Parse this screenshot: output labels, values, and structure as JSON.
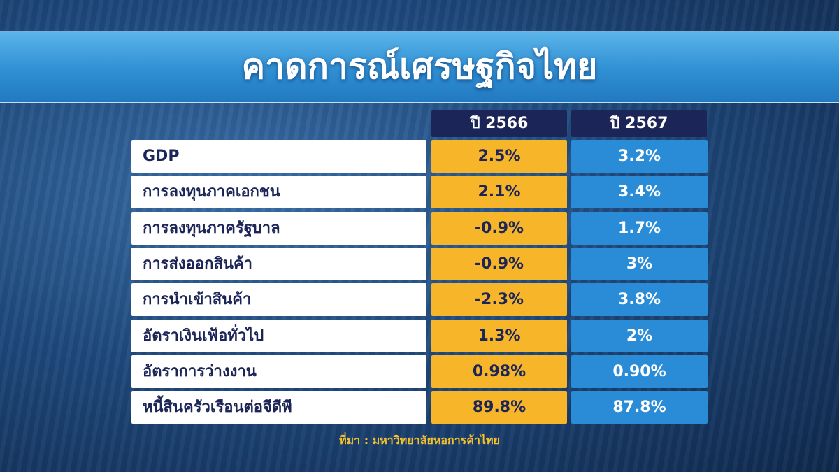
{
  "header": {
    "title": "คาดการณ์เศรษฐกิจไทย"
  },
  "table": {
    "columns": [
      "ปี 2566",
      "ปี 2567"
    ],
    "rows": [
      [
        "GDP",
        "2.5%",
        "3.2%"
      ],
      [
        "การลงทุนภาคเอกชน",
        "2.1%",
        "3.4%"
      ],
      [
        "การลงทุนภาครัฐบาล",
        "-0.9%",
        "1.7%"
      ],
      [
        "การส่งออกสินค้า",
        "-0.9%",
        "3%"
      ],
      [
        "การนำเข้าสินค้า",
        "-2.3%",
        "3.8%"
      ],
      [
        "อัตราเงินเฟ้อทั่วไป",
        "1.3%",
        "2%"
      ],
      [
        "อัตราการว่างงาน",
        "0.98%",
        "0.90%"
      ],
      [
        "หนี้สินครัวเรือนต่อจีดีพี",
        "89.8%",
        "87.8%"
      ]
    ]
  },
  "footer": {
    "source": "ที่มา : มหาวิทยาลัยหอการค้าไทย"
  }
}
